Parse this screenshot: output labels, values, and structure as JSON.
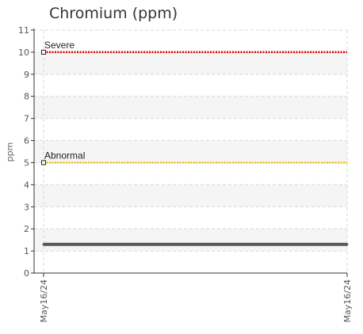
{
  "chart_data": {
    "type": "line",
    "title": "Chromium (ppm)",
    "ylabel": "ppm",
    "xlabel": "",
    "ylim": [
      0,
      11
    ],
    "y_ticks": [
      0,
      1,
      2,
      3,
      4,
      5,
      6,
      7,
      8,
      9,
      10,
      11
    ],
    "x_ticks": [
      "May16/24",
      "May16/24"
    ],
    "grid": true,
    "series": [
      {
        "values": [
          1.3,
          1.3
        ],
        "color": "#555555"
      }
    ],
    "reference_lines": [
      {
        "label": "Severe",
        "value": 10,
        "color": "#dd0000"
      },
      {
        "label": "Abnormal",
        "value": 5,
        "color": "#f2c400"
      }
    ]
  }
}
